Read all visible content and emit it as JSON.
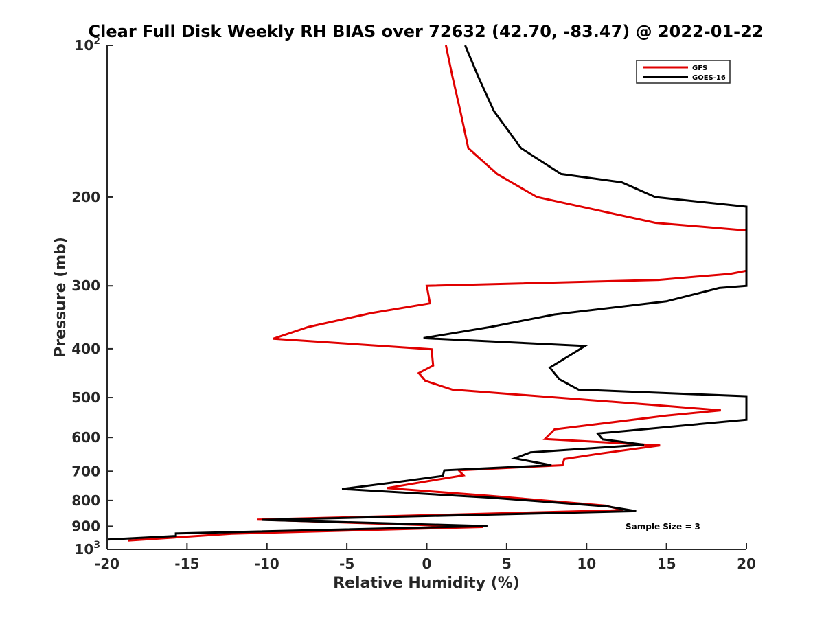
{
  "chart_data": {
    "type": "line",
    "title": "Clear Full Disk Weekly RH BIAS over 72632 (42.70, -83.47) @ 2022-01-22",
    "xlabel": "Relative Humidity (%)",
    "ylabel": "Pressure (mb)",
    "xlim": [
      -20,
      20
    ],
    "ylim": [
      100,
      1000
    ],
    "y_scale": "log",
    "y_reversed": true,
    "x_ticks": [
      "-20",
      "-15",
      "-10",
      "-5",
      "0",
      "5",
      "10",
      "15",
      "20"
    ],
    "y_ticks": [
      {
        "value": 100,
        "base": "10",
        "exp": "2"
      },
      {
        "value": 200,
        "label": "200"
      },
      {
        "value": 300,
        "label": "300"
      },
      {
        "value": 400,
        "label": "400"
      },
      {
        "value": 500,
        "label": "500"
      },
      {
        "value": 600,
        "label": "600"
      },
      {
        "value": 700,
        "label": "700"
      },
      {
        "value": 800,
        "label": "800"
      },
      {
        "value": 900,
        "label": "900"
      },
      {
        "value": 1000,
        "base": "10",
        "exp": "3"
      }
    ],
    "legend_position": "top-right",
    "grid": false,
    "annotation": "Sample Size = 3",
    "series": [
      {
        "name": "GFS",
        "color": "#e00000",
        "points": [
          [
            1.2,
            100
          ],
          [
            1.6,
            115
          ],
          [
            2.1,
            135
          ],
          [
            2.6,
            160
          ],
          [
            4.4,
            180
          ],
          [
            6.9,
            200
          ],
          [
            14.3,
            225
          ],
          [
            20,
            233
          ],
          [
            20,
            280
          ],
          [
            19,
            284
          ],
          [
            14.5,
            292
          ],
          [
            0,
            300
          ],
          [
            0.2,
            325
          ],
          [
            -3.5,
            340
          ],
          [
            -7.4,
            362
          ],
          [
            -9.6,
            382
          ],
          [
            0.3,
            401
          ],
          [
            0.4,
            432
          ],
          [
            -0.5,
            447
          ],
          [
            -0.1,
            463
          ],
          [
            1.6,
            482
          ],
          [
            14.2,
            517
          ],
          [
            18.4,
            530
          ],
          [
            15,
            543
          ],
          [
            8,
            578
          ],
          [
            7.4,
            604
          ],
          [
            14.6,
            622
          ],
          [
            10.8,
            646
          ],
          [
            8.6,
            662
          ],
          [
            8.5,
            681
          ],
          [
            2,
            697
          ],
          [
            2.3,
            713
          ],
          [
            0.1,
            732
          ],
          [
            -2.5,
            756
          ],
          [
            3.9,
            783
          ],
          [
            11.2,
            819
          ],
          [
            12.3,
            836
          ],
          [
            -10.6,
            873
          ],
          [
            3.5,
            903
          ],
          [
            -12.2,
            931
          ],
          [
            -18.7,
            961
          ]
        ]
      },
      {
        "name": "GOES-16",
        "color": "#000000",
        "points": [
          [
            2.4,
            100
          ],
          [
            3.2,
            115
          ],
          [
            4.2,
            135
          ],
          [
            5.9,
            160
          ],
          [
            8.4,
            180
          ],
          [
            12.2,
            187
          ],
          [
            14.3,
            200
          ],
          [
            20,
            209
          ],
          [
            20,
            300
          ],
          [
            18.3,
            303
          ],
          [
            15,
            322
          ],
          [
            8,
            342
          ],
          [
            4,
            362
          ],
          [
            -0.2,
            381
          ],
          [
            9.9,
            395
          ],
          [
            7.7,
            436
          ],
          [
            8.3,
            460
          ],
          [
            9.5,
            482
          ],
          [
            20,
            497
          ],
          [
            20,
            553
          ],
          [
            10.7,
            589
          ],
          [
            11,
            605
          ],
          [
            13.6,
            620
          ],
          [
            6.5,
            642
          ],
          [
            5.5,
            660
          ],
          [
            7.8,
            681
          ],
          [
            1.1,
            697
          ],
          [
            1,
            715
          ],
          [
            -1.8,
            735
          ],
          [
            -5.3,
            759
          ],
          [
            4.1,
            790
          ],
          [
            11.3,
            822
          ],
          [
            13.1,
            840
          ],
          [
            -10.3,
            874
          ],
          [
            3.8,
            899
          ],
          [
            -15.7,
            930
          ],
          [
            -15.7,
            941
          ],
          [
            -20,
            956
          ]
        ]
      }
    ]
  }
}
